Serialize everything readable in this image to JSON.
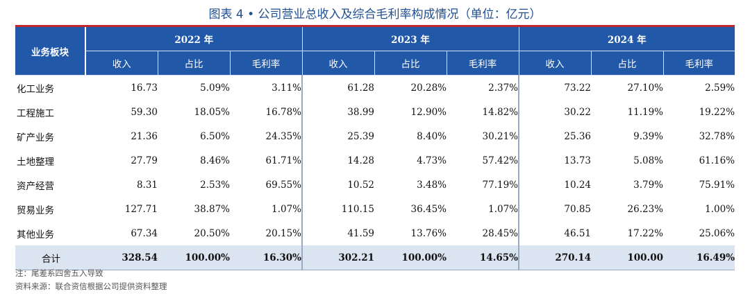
{
  "title": "图表 4 • 公司营业总收入及综合毛利率构成情况（单位：亿元）",
  "table": {
    "segment_header": "业务板块",
    "years": [
      "2022 年",
      "2023 年",
      "2024 年"
    ],
    "subheaders": [
      "收入",
      "占比",
      "毛利率"
    ],
    "rows": [
      {
        "label": "化工业务",
        "cells": [
          "16.73",
          "5.09%",
          "3.11%",
          "61.28",
          "20.28%",
          "2.37%",
          "73.22",
          "27.10%",
          "2.59%"
        ]
      },
      {
        "label": "工程施工",
        "cells": [
          "59.30",
          "18.05%",
          "16.78%",
          "38.99",
          "12.90%",
          "14.82%",
          "30.22",
          "11.19%",
          "19.22%"
        ]
      },
      {
        "label": "矿产业务",
        "cells": [
          "21.36",
          "6.50%",
          "24.35%",
          "25.39",
          "8.40%",
          "30.21%",
          "25.36",
          "9.39%",
          "32.78%"
        ]
      },
      {
        "label": "土地整理",
        "cells": [
          "27.79",
          "8.46%",
          "61.71%",
          "14.28",
          "4.73%",
          "57.42%",
          "13.73",
          "5.08%",
          "61.16%"
        ]
      },
      {
        "label": "资产经营",
        "cells": [
          "8.31",
          "2.53%",
          "69.55%",
          "10.52",
          "3.48%",
          "77.19%",
          "10.24",
          "3.79%",
          "75.91%"
        ]
      },
      {
        "label": "贸易业务",
        "cells": [
          "127.71",
          "38.87%",
          "1.07%",
          "110.15",
          "36.45%",
          "1.07%",
          "70.85",
          "26.23%",
          "1.00%"
        ]
      },
      {
        "label": "其他业务",
        "cells": [
          "67.34",
          "20.50%",
          "20.15%",
          "41.59",
          "13.76%",
          "28.45%",
          "46.51",
          "17.22%",
          "25.06%"
        ]
      }
    ],
    "total": {
      "label": "合计",
      "cells": [
        "328.54",
        "100.00%",
        "16.30%",
        "302.21",
        "100.00%",
        "14.65%",
        "270.14",
        "100.00",
        "16.49%"
      ]
    }
  },
  "notes": {
    "note": "注：尾差系四舍五入导致",
    "source": "资料来源：联合资信根据公司提供资料整理"
  },
  "colors": {
    "title": "#1f4e91",
    "header_bg": "#2158a8",
    "header_top_rule": "#c0282e",
    "total_bg": "#dbe5f1"
  }
}
